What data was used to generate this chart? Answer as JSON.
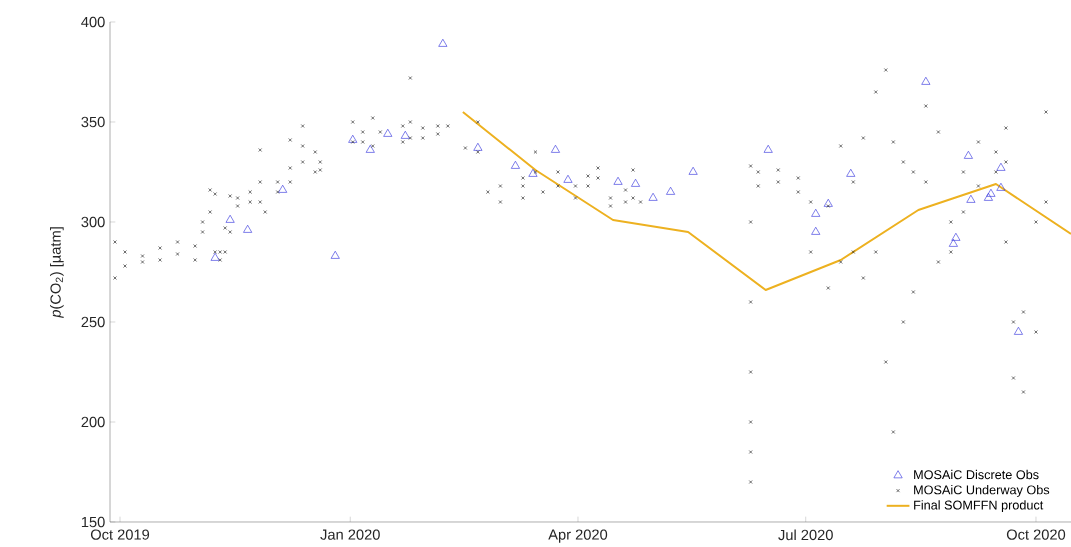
{
  "chart_data": {
    "type": "scatter",
    "ylabel": "*p*(CO$_{2}$) [µatm]",
    "xlim": [
      "2019-09-27",
      "2020-10-15"
    ],
    "ylim": [
      150,
      400
    ],
    "xticks": [
      {
        "value": "2019-10-01",
        "label": "Oct 2019"
      },
      {
        "value": "2020-01-01",
        "label": "Jan 2020"
      },
      {
        "value": "2020-04-01",
        "label": "Apr 2020"
      },
      {
        "value": "2020-07-01",
        "label": "Jul 2020"
      },
      {
        "value": "2020-10-01",
        "label": "Oct 2020"
      }
    ],
    "yticks": [
      150,
      200,
      250,
      300,
      350,
      400
    ],
    "legend": "bottom right",
    "series": [
      {
        "name": "MOSAiC Discrete Obs",
        "marker": "triangle",
        "color": "#4040e0",
        "x": [
          "2019-11-08",
          "2019-11-14",
          "2019-11-21",
          "2019-12-05",
          "2019-12-26",
          "2020-01-02",
          "2020-01-09",
          "2020-01-16",
          "2020-01-23",
          "2020-02-07",
          "2020-02-21",
          "2020-03-07",
          "2020-03-14",
          "2020-03-23",
          "2020-03-28",
          "2020-04-17",
          "2020-04-24",
          "2020-05-01",
          "2020-05-08",
          "2020-05-17",
          "2020-06-16",
          "2020-07-05",
          "2020-07-05",
          "2020-07-10",
          "2020-07-19",
          "2020-08-18",
          "2020-08-29",
          "2020-08-30",
          "2020-09-04",
          "2020-09-05",
          "2020-09-12",
          "2020-09-13",
          "2020-09-17",
          "2020-09-17",
          "2020-09-24"
        ],
        "values": [
          282,
          301,
          296,
          316,
          283,
          341,
          336,
          344,
          343,
          389,
          337,
          328,
          324,
          336,
          321,
          320,
          319,
          312,
          315,
          325,
          336,
          304,
          295,
          309,
          324,
          370,
          289,
          292,
          333,
          311,
          312,
          314,
          327,
          317,
          245
        ]
      },
      {
        "name": "MOSAiC Underway Obs",
        "marker": "cross",
        "color": "#262626",
        "x": [
          "2019-09-29",
          "2019-09-29",
          "2019-10-03",
          "2019-10-03",
          "2019-10-10",
          "2019-10-10",
          "2019-10-17",
          "2019-10-17",
          "2019-10-24",
          "2019-10-24",
          "2019-10-31",
          "2019-10-31",
          "2019-11-03",
          "2019-11-03",
          "2019-11-06",
          "2019-11-06",
          "2019-11-08",
          "2019-11-08",
          "2019-11-10",
          "2019-11-10",
          "2019-11-12",
          "2019-11-12",
          "2019-11-14",
          "2019-11-14",
          "2019-11-17",
          "2019-11-17",
          "2019-11-22",
          "2019-11-22",
          "2019-11-26",
          "2019-11-26",
          "2019-11-26",
          "2019-11-28",
          "2019-12-03",
          "2019-12-03",
          "2019-12-08",
          "2019-12-08",
          "2019-12-08",
          "2019-12-13",
          "2019-12-13",
          "2019-12-13",
          "2019-12-18",
          "2019-12-18",
          "2019-12-20",
          "2019-12-20",
          "2020-01-02",
          "2020-01-02",
          "2020-01-06",
          "2020-01-06",
          "2020-01-10",
          "2020-01-10",
          "2020-01-13",
          "2020-01-22",
          "2020-01-22",
          "2020-01-25",
          "2020-01-25",
          "2020-01-25",
          "2020-01-30",
          "2020-01-30",
          "2020-02-05",
          "2020-02-05",
          "2020-02-09",
          "2020-02-16",
          "2020-02-21",
          "2020-02-21",
          "2020-02-25",
          "2020-03-01",
          "2020-03-01",
          "2020-03-10",
          "2020-03-10",
          "2020-03-10",
          "2020-03-15",
          "2020-03-15",
          "2020-03-18",
          "2020-03-24",
          "2020-03-24",
          "2020-03-31",
          "2020-03-31",
          "2020-04-05",
          "2020-04-05",
          "2020-04-09",
          "2020-04-09",
          "2020-04-14",
          "2020-04-14",
          "2020-04-20",
          "2020-04-20",
          "2020-04-23",
          "2020-04-23",
          "2020-04-26",
          "2020-06-09",
          "2020-06-09",
          "2020-06-09",
          "2020-06-09",
          "2020-06-09",
          "2020-06-09",
          "2020-06-09",
          "2020-06-12",
          "2020-06-12",
          "2020-06-20",
          "2020-06-20",
          "2020-06-28",
          "2020-06-28",
          "2020-07-03",
          "2020-07-03",
          "2020-07-10",
          "2020-07-10",
          "2020-07-15",
          "2020-07-15",
          "2020-07-20",
          "2020-07-20",
          "2020-07-24",
          "2020-07-24",
          "2020-07-29",
          "2020-07-29",
          "2020-08-02",
          "2020-08-02",
          "2020-08-05",
          "2020-08-05",
          "2020-08-09",
          "2020-08-09",
          "2020-08-13",
          "2020-08-13",
          "2020-08-18",
          "2020-08-18",
          "2020-08-23",
          "2020-08-23",
          "2020-08-28",
          "2020-08-28",
          "2020-09-02",
          "2020-09-02",
          "2020-09-08",
          "2020-09-08",
          "2020-09-15",
          "2020-09-15",
          "2020-09-19",
          "2020-09-19",
          "2020-09-19",
          "2020-09-22",
          "2020-09-22",
          "2020-09-26",
          "2020-09-26",
          "2020-10-01",
          "2020-10-01",
          "2020-10-05",
          "2020-10-05"
        ],
        "values": [
          272,
          290,
          285,
          278,
          283,
          280,
          287,
          281,
          290,
          284,
          288,
          281,
          300,
          295,
          316,
          305,
          314,
          285,
          285,
          281,
          297,
          285,
          313,
          295,
          312,
          308,
          315,
          310,
          320,
          310,
          336,
          305,
          320,
          315,
          327,
          320,
          341,
          338,
          330,
          348,
          335,
          325,
          330,
          326,
          350,
          340,
          345,
          340,
          352,
          338,
          345,
          348,
          340,
          372,
          350,
          342,
          347,
          342,
          348,
          344,
          348,
          337,
          350,
          335,
          315,
          318,
          310,
          318,
          312,
          322,
          335,
          325,
          315,
          325,
          318,
          318,
          312,
          323,
          318,
          327,
          322,
          312,
          308,
          316,
          310,
          326,
          312,
          310,
          328,
          300,
          260,
          225,
          200,
          185,
          170,
          325,
          318,
          326,
          320,
          322,
          315,
          310,
          285,
          308,
          267,
          338,
          280,
          320,
          285,
          342,
          272,
          365,
          285,
          376,
          230,
          340,
          195,
          330,
          250,
          325,
          265,
          358,
          320,
          345,
          280,
          300,
          285,
          325,
          305,
          340,
          318,
          335,
          325,
          330,
          290,
          347,
          250,
          222,
          255,
          215,
          300,
          245,
          355,
          310
        ]
      },
      {
        "name": "Final SOMFFN product",
        "type": "line",
        "marker": "none",
        "color": "#edb120",
        "x": [
          "2020-02-15",
          "2020-03-15",
          "2020-04-15",
          "2020-05-15",
          "2020-06-15",
          "2020-07-15",
          "2020-08-15",
          "2020-09-15",
          "2020-10-15"
        ],
        "values": [
          355,
          326,
          301,
          295,
          266,
          281,
          306,
          319,
          294
        ]
      }
    ]
  }
}
